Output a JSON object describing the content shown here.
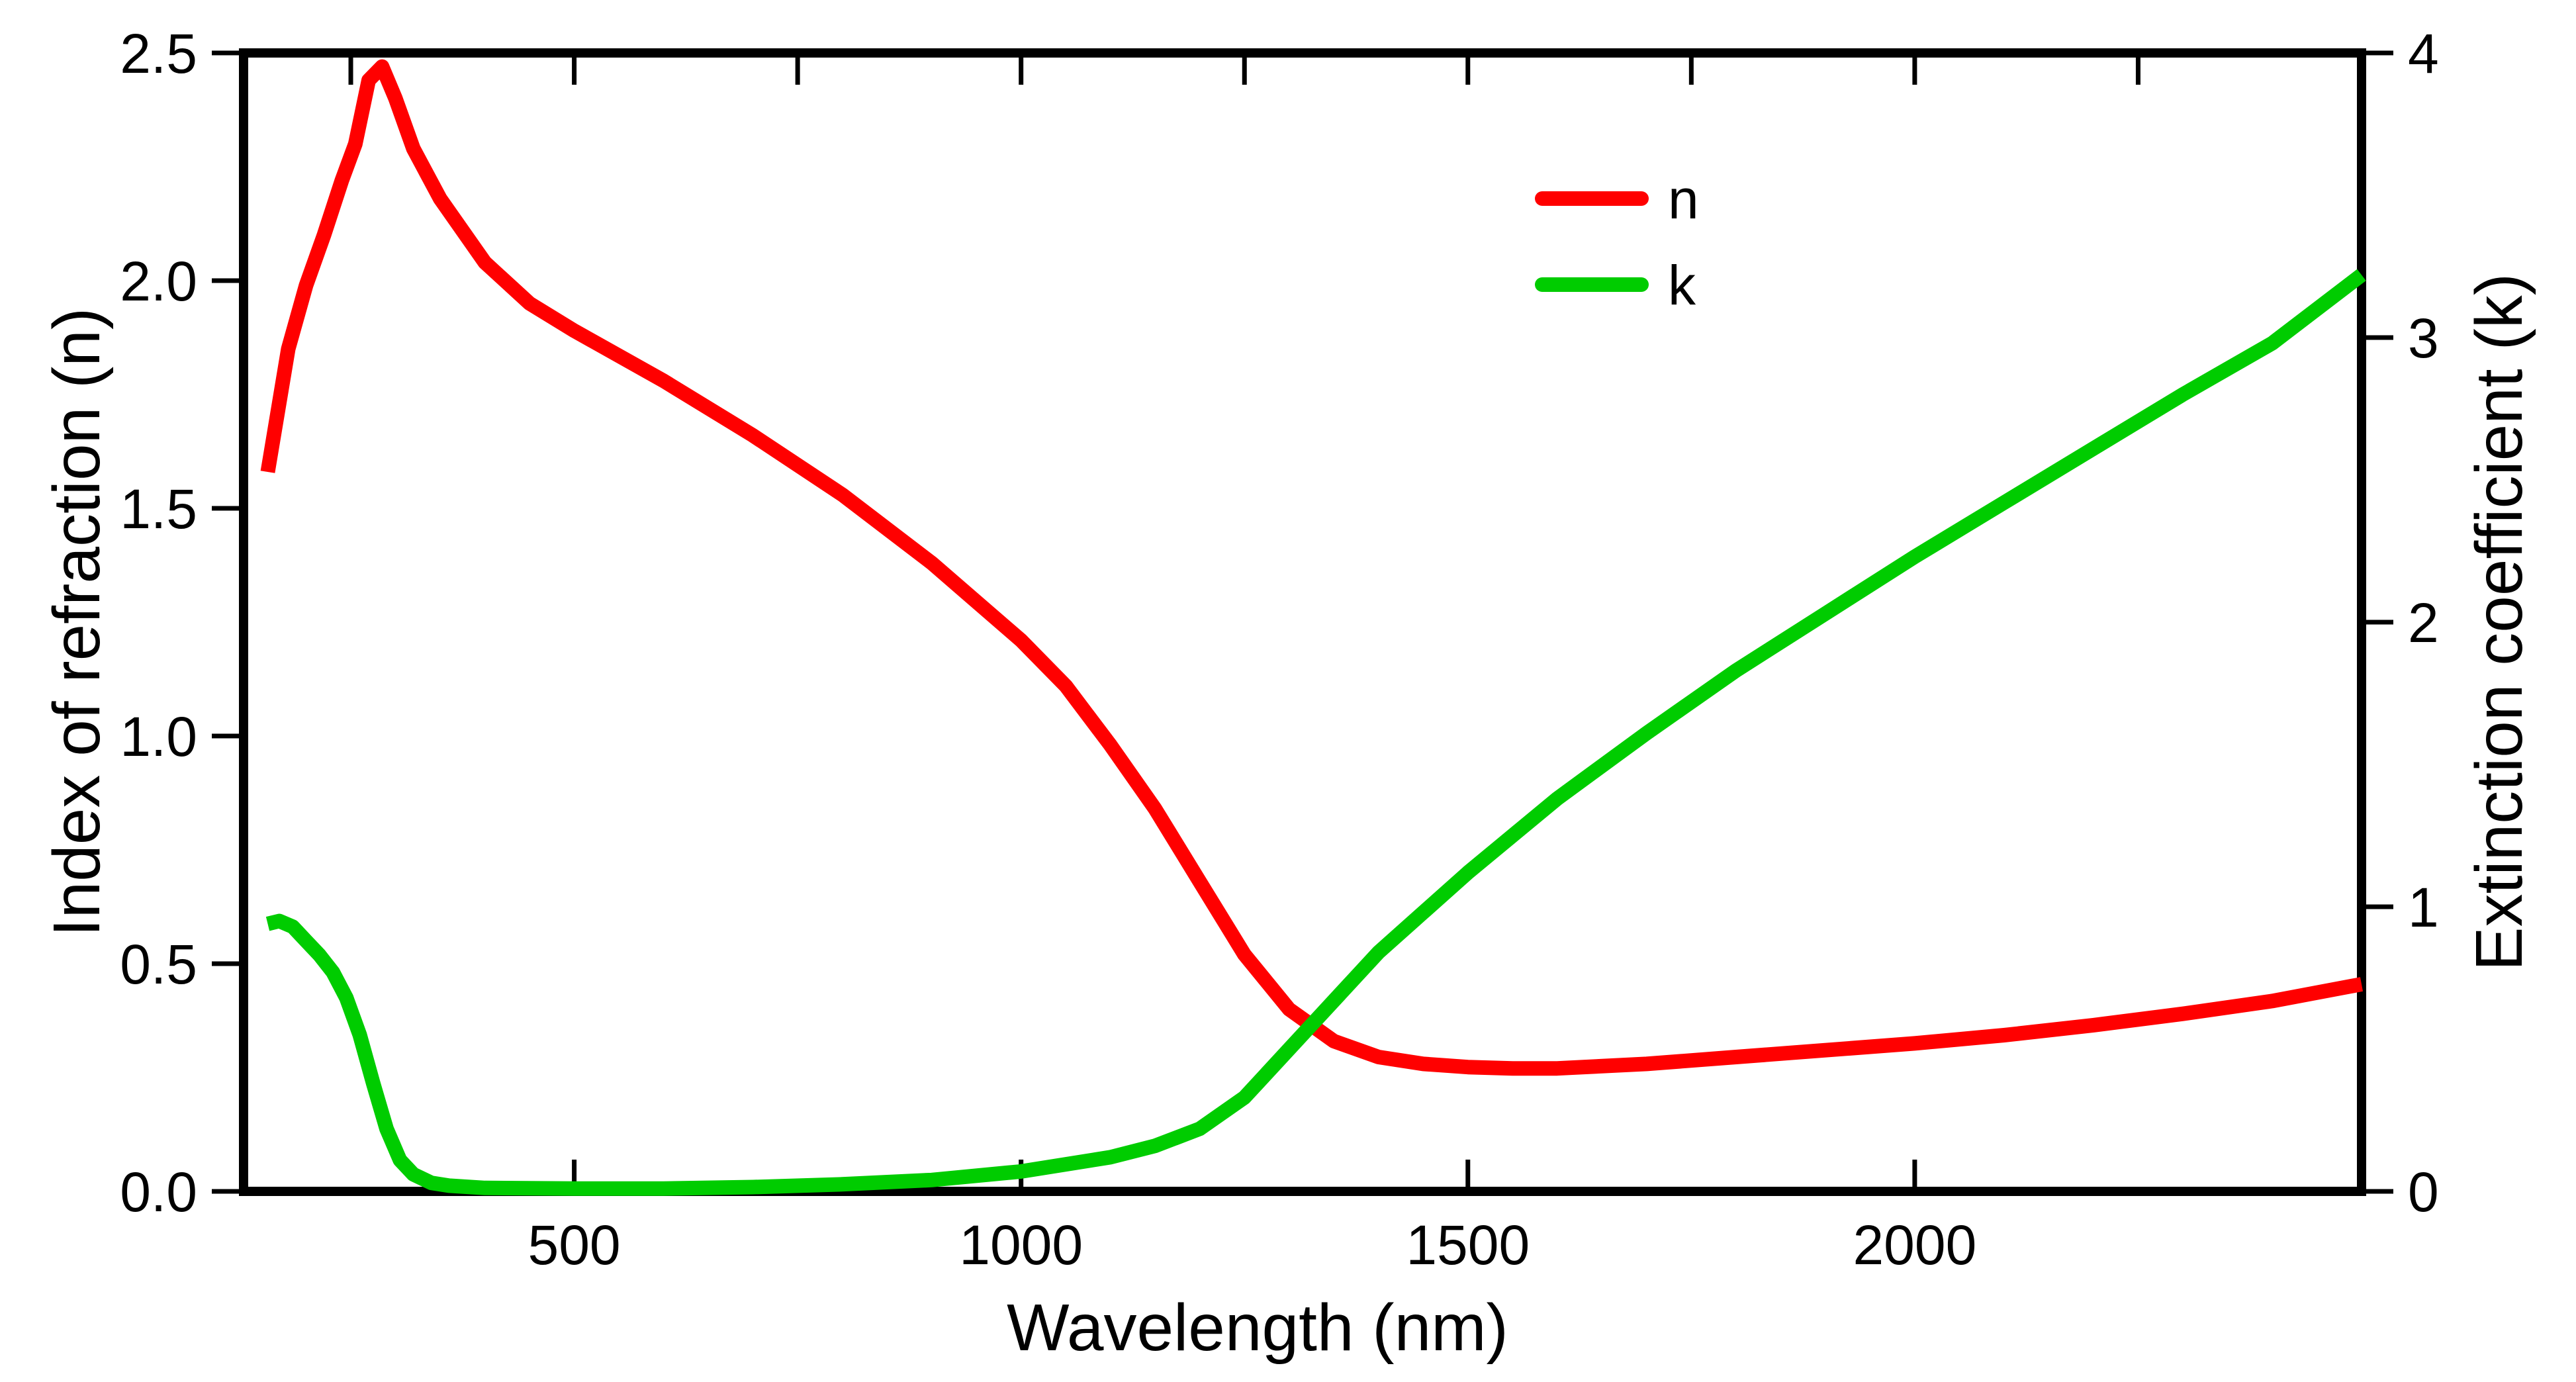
{
  "chart_data": {
    "type": "line",
    "title": "",
    "xlabel": "Wavelength (nm)",
    "ylabel_left": "Index of refraction (n)",
    "ylabel_right": "Extinction coefficient (k)",
    "xlim": [
      130,
      2500
    ],
    "ylim_left": [
      0,
      2.5
    ],
    "ylim_right": [
      0,
      4
    ],
    "x_ticks": [
      500,
      1000,
      1500,
      2000
    ],
    "y_left_ticks": [
      "0.0",
      "0.5",
      "1.0",
      "1.5",
      "2.0",
      "2.5"
    ],
    "y_right_ticks": [
      "0",
      "1",
      "2",
      "3",
      "4"
    ],
    "grid": false,
    "legend_position": "top-center",
    "series": [
      {
        "name": "n",
        "axis": "left",
        "color": "#ff0000",
        "x": [
          157,
          180,
          200,
          220,
          240,
          255,
          270,
          285,
          300,
          320,
          350,
          400,
          450,
          500,
          600,
          700,
          800,
          900,
          1000,
          1050,
          1100,
          1150,
          1200,
          1250,
          1300,
          1350,
          1400,
          1450,
          1500,
          1550,
          1600,
          1700,
          1800,
          1900,
          2000,
          2100,
          2200,
          2300,
          2400,
          2500
        ],
        "values": [
          1.58,
          1.85,
          1.99,
          2.1,
          2.22,
          2.3,
          2.44,
          2.47,
          2.4,
          2.29,
          2.18,
          2.04,
          1.95,
          1.89,
          1.78,
          1.66,
          1.53,
          1.38,
          1.21,
          1.11,
          0.98,
          0.84,
          0.68,
          0.52,
          0.4,
          0.33,
          0.295,
          0.28,
          0.273,
          0.27,
          0.27,
          0.28,
          0.295,
          0.31,
          0.325,
          0.343,
          0.365,
          0.39,
          0.418,
          0.455
        ]
      },
      {
        "name": "k",
        "axis": "right",
        "color": "#00cc00",
        "x": [
          157,
          170,
          185,
          200,
          215,
          230,
          245,
          260,
          275,
          290,
          305,
          320,
          340,
          360,
          400,
          500,
          600,
          700,
          800,
          900,
          1000,
          1100,
          1150,
          1200,
          1250,
          1300,
          1350,
          1400,
          1450,
          1500,
          1600,
          1700,
          1800,
          1900,
          2000,
          2100,
          2200,
          2300,
          2400,
          2500
        ],
        "values": [
          0.94,
          0.95,
          0.93,
          0.88,
          0.83,
          0.77,
          0.68,
          0.55,
          0.38,
          0.22,
          0.11,
          0.06,
          0.03,
          0.02,
          0.012,
          0.01,
          0.01,
          0.015,
          0.025,
          0.04,
          0.07,
          0.12,
          0.16,
          0.22,
          0.33,
          0.5,
          0.67,
          0.84,
          0.98,
          1.12,
          1.38,
          1.61,
          1.83,
          2.03,
          2.23,
          2.42,
          2.61,
          2.8,
          2.98,
          3.22
        ]
      }
    ]
  }
}
